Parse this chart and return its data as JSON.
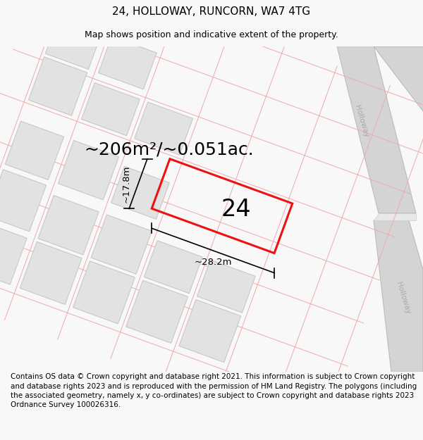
{
  "title": "24, HOLLOWAY, RUNCORN, WA7 4TG",
  "subtitle": "Map shows position and indicative extent of the property.",
  "footer": "Contains OS data © Crown copyright and database right 2021. This information is subject to Crown copyright and database rights 2023 and is reproduced with the permission of HM Land Registry. The polygons (including the associated geometry, namely x, y co-ordinates) are subject to Crown copyright and database rights 2023 Ordnance Survey 100026316.",
  "area_label": "~206m²/~0.051ac.",
  "house_number": "24",
  "dim_width": "~28.2m",
  "dim_height": "~17.8m",
  "street_name": "Holloway",
  "bg_color": "#f8f8f8",
  "map_bg": "#ffffff",
  "road_color": "#d4d4d4",
  "road_edge_color": "#bbbbbb",
  "road_curve_color": "#cccccc",
  "plot_color": "#ee1111",
  "building_color": "#e2e2e2",
  "building_border": "#c8c8c8",
  "lot_line_color": "#f0aaaa",
  "title_fontsize": 11,
  "subtitle_fontsize": 9,
  "footer_fontsize": 7.5,
  "area_fontsize": 18,
  "number_fontsize": 24
}
